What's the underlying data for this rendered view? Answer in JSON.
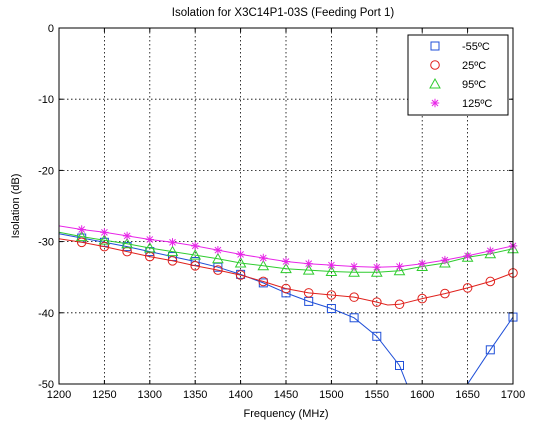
{
  "chart_data": {
    "type": "line",
    "title": "Isolation for X3C14P1-03S (Feeding Port 1)",
    "xlabel": "Frequency (MHz)",
    "ylabel": "Isolation (dB)",
    "xlim": [
      1200,
      1700
    ],
    "ylim": [
      -50,
      0
    ],
    "xticks": [
      1200,
      1250,
      1300,
      1350,
      1400,
      1450,
      1500,
      1550,
      1600,
      1650,
      1700
    ],
    "yticks": [
      0,
      -10,
      -20,
      -30,
      -40,
      -50
    ],
    "grid": true,
    "legend_position": "top-right",
    "series": [
      {
        "name": "-55ºC",
        "color": "#1f4fd8",
        "marker": "square",
        "x": [
          1200,
          1225,
          1250,
          1275,
          1300,
          1325,
          1350,
          1375,
          1400,
          1425,
          1450,
          1475,
          1500,
          1525,
          1550,
          1575,
          1583,
          1650,
          1675,
          1700
        ],
        "y": [
          -28.9,
          -29.5,
          -30.1,
          -30.7,
          -31.4,
          -32.1,
          -32.8,
          -33.6,
          -34.6,
          -35.8,
          -37.2,
          -38.4,
          -39.4,
          -40.7,
          -43.3,
          -47.4,
          -50,
          -50,
          -45.2,
          -40.6
        ],
        "marker_x": [
          1225,
          1250,
          1275,
          1300,
          1325,
          1350,
          1375,
          1400,
          1425,
          1450,
          1475,
          1500,
          1525,
          1550,
          1575,
          1675,
          1700
        ]
      },
      {
        "name": "25ºC",
        "color": "#e0211c",
        "marker": "circle",
        "x": [
          1200,
          1225,
          1250,
          1275,
          1300,
          1325,
          1350,
          1375,
          1400,
          1425,
          1450,
          1475,
          1500,
          1525,
          1550,
          1562,
          1575,
          1600,
          1625,
          1650,
          1675,
          1700
        ],
        "y": [
          -29.6,
          -30.1,
          -30.7,
          -31.4,
          -32.1,
          -32.7,
          -33.4,
          -34.0,
          -34.7,
          -35.6,
          -36.6,
          -37.2,
          -37.5,
          -37.8,
          -38.5,
          -38.9,
          -38.8,
          -38.0,
          -37.3,
          -36.5,
          -35.6,
          -34.4
        ],
        "marker_x": [
          1225,
          1250,
          1275,
          1300,
          1325,
          1350,
          1375,
          1400,
          1425,
          1450,
          1475,
          1500,
          1525,
          1550,
          1575,
          1600,
          1625,
          1650,
          1675,
          1700
        ]
      },
      {
        "name": "95ºC",
        "color": "#2fcc2f",
        "marker": "triangle",
        "x": [
          1200,
          1225,
          1250,
          1275,
          1300,
          1325,
          1350,
          1375,
          1400,
          1425,
          1450,
          1475,
          1500,
          1525,
          1550,
          1575,
          1600,
          1625,
          1650,
          1675,
          1700
        ],
        "y": [
          -28.7,
          -29.3,
          -29.8,
          -30.3,
          -30.9,
          -31.4,
          -31.9,
          -32.4,
          -33.0,
          -33.4,
          -33.8,
          -34.0,
          -34.2,
          -34.3,
          -34.3,
          -34.1,
          -33.5,
          -33.0,
          -32.2,
          -31.7,
          -31.0
        ],
        "marker_x": [
          1225,
          1250,
          1275,
          1300,
          1325,
          1350,
          1375,
          1400,
          1425,
          1450,
          1475,
          1500,
          1525,
          1550,
          1575,
          1600,
          1625,
          1650,
          1675,
          1700
        ]
      },
      {
        "name": "125ºC",
        "color": "#e826e8",
        "marker": "star",
        "x": [
          1200,
          1225,
          1250,
          1275,
          1300,
          1325,
          1350,
          1375,
          1400,
          1425,
          1450,
          1475,
          1500,
          1525,
          1550,
          1575,
          1600,
          1625,
          1650,
          1675,
          1700
        ],
        "y": [
          -27.8,
          -28.3,
          -28.7,
          -29.2,
          -29.7,
          -30.1,
          -30.6,
          -31.2,
          -31.8,
          -32.3,
          -32.8,
          -33.1,
          -33.3,
          -33.5,
          -33.6,
          -33.5,
          -33.1,
          -32.6,
          -32.0,
          -31.3,
          -30.6
        ],
        "marker_x": [
          1225,
          1250,
          1275,
          1300,
          1325,
          1350,
          1375,
          1400,
          1425,
          1450,
          1475,
          1500,
          1525,
          1550,
          1575,
          1600,
          1625,
          1650,
          1675,
          1700
        ]
      }
    ]
  }
}
